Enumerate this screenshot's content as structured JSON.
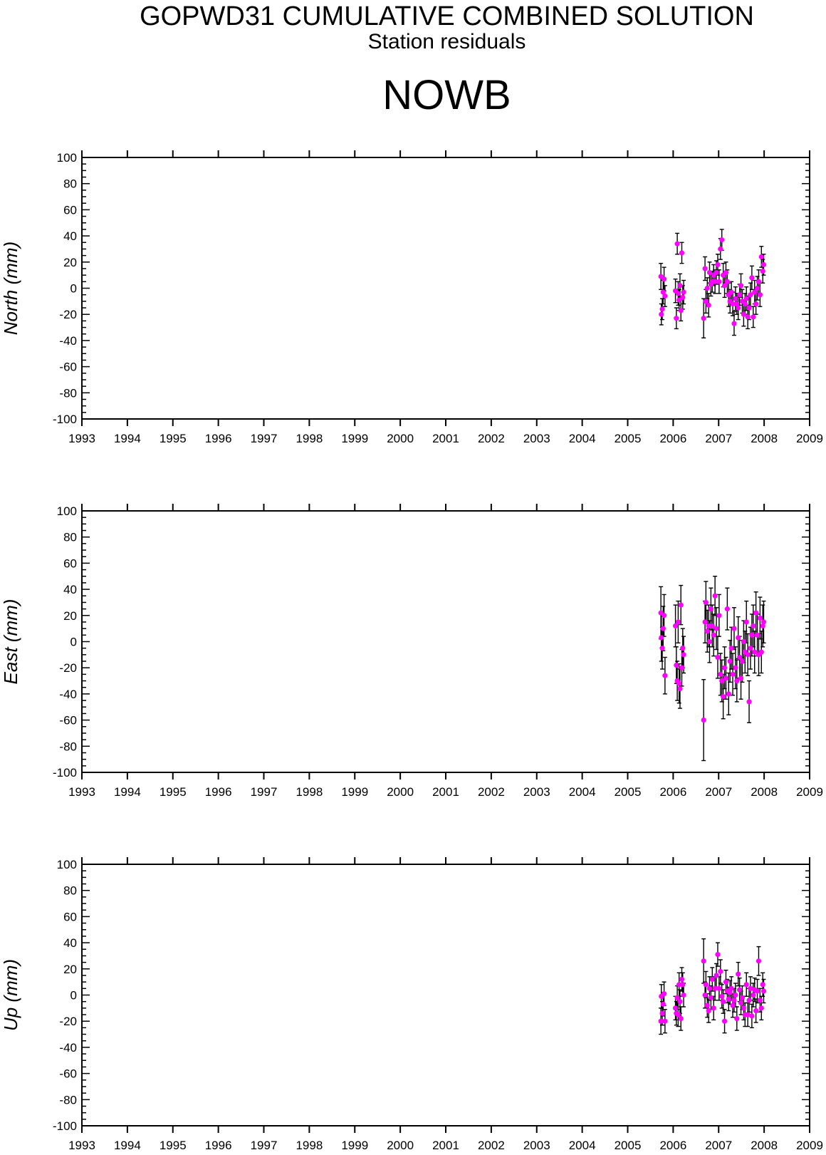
{
  "header": {
    "title": "GOPWD31 CUMULATIVE COMBINED SOLUTION",
    "subtitle": "Station residuals",
    "station": "NOWB"
  },
  "colors": {
    "axis": "#000000",
    "marker": "#ff00ff",
    "errorbar": "#000000"
  },
  "chart_data": [
    {
      "type": "scatter",
      "ylabel": "North (mm)",
      "xlim": [
        1993,
        2009
      ],
      "ylim": [
        -100,
        100
      ],
      "xticks": [
        "1993",
        "1994",
        "1995",
        "1996",
        "1997",
        "1998",
        "1999",
        "2000",
        "2001",
        "2002",
        "2003",
        "2004",
        "2005",
        "2006",
        "2007",
        "2008",
        "2009"
      ],
      "yticks": [
        "-100",
        "-80",
        "-60",
        "-40",
        "-20",
        "0",
        "20",
        "40",
        "60",
        "80",
        "100"
      ],
      "grid": false,
      "error_bars": true,
      "points": [
        [
          2005.73,
          9,
          10
        ],
        [
          2005.74,
          -20,
          8
        ],
        [
          2005.76,
          -16,
          8
        ],
        [
          2005.78,
          -3,
          9
        ],
        [
          2005.8,
          7,
          9
        ],
        [
          2005.82,
          -6,
          8
        ],
        [
          2006.05,
          -2,
          9
        ],
        [
          2006.07,
          -23,
          8
        ],
        [
          2006.09,
          34,
          8
        ],
        [
          2006.11,
          -4,
          9
        ],
        [
          2006.13,
          -9,
          8
        ],
        [
          2006.15,
          2,
          9
        ],
        [
          2006.17,
          -17,
          8
        ],
        [
          2006.19,
          27,
          8
        ],
        [
          2006.21,
          -7,
          9
        ],
        [
          2006.23,
          -3,
          9
        ],
        [
          2006.67,
          -23,
          15
        ],
        [
          2006.7,
          15,
          9
        ],
        [
          2006.72,
          -10,
          9
        ],
        [
          2006.75,
          0,
          8
        ],
        [
          2006.78,
          -13,
          9
        ],
        [
          2006.8,
          12,
          8
        ],
        [
          2006.83,
          3,
          9
        ],
        [
          2006.86,
          5,
          8
        ],
        [
          2006.89,
          10,
          8
        ],
        [
          2006.92,
          5,
          9
        ],
        [
          2006.95,
          12,
          9
        ],
        [
          2006.98,
          18,
          8
        ],
        [
          2007.01,
          5,
          9
        ],
        [
          2007.04,
          30,
          8
        ],
        [
          2007.07,
          37,
          8
        ],
        [
          2007.1,
          10,
          9
        ],
        [
          2007.13,
          2,
          9
        ],
        [
          2007.16,
          12,
          8
        ],
        [
          2007.19,
          5,
          9
        ],
        [
          2007.22,
          -5,
          9
        ],
        [
          2007.25,
          -10,
          9
        ],
        [
          2007.28,
          -3,
          8
        ],
        [
          2007.31,
          -12,
          9
        ],
        [
          2007.34,
          -27,
          9
        ],
        [
          2007.37,
          -8,
          9
        ],
        [
          2007.4,
          -12,
          8
        ],
        [
          2007.43,
          -15,
          9
        ],
        [
          2007.46,
          -5,
          8
        ],
        [
          2007.49,
          2,
          9
        ],
        [
          2007.52,
          -10,
          9
        ],
        [
          2007.55,
          -20,
          9
        ],
        [
          2007.58,
          -12,
          8
        ],
        [
          2007.61,
          -8,
          9
        ],
        [
          2007.64,
          -22,
          9
        ],
        [
          2007.67,
          -15,
          9
        ],
        [
          2007.7,
          -5,
          9
        ],
        [
          2007.73,
          8,
          9
        ],
        [
          2007.76,
          -22,
          8
        ],
        [
          2007.79,
          -3,
          9
        ],
        [
          2007.82,
          -12,
          8
        ],
        [
          2007.85,
          0,
          9
        ],
        [
          2007.88,
          5,
          9
        ],
        [
          2007.91,
          -5,
          9
        ],
        [
          2007.94,
          24,
          8
        ],
        [
          2007.97,
          13,
          9
        ],
        [
          2007.99,
          18,
          8
        ]
      ]
    },
    {
      "type": "scatter",
      "ylabel": "East (mm)",
      "xlim": [
        1993,
        2009
      ],
      "ylim": [
        -100,
        100
      ],
      "xticks": [
        "1993",
        "1994",
        "1995",
        "1996",
        "1997",
        "1998",
        "1999",
        "2000",
        "2001",
        "2002",
        "2003",
        "2004",
        "2005",
        "2006",
        "2007",
        "2008",
        "2009"
      ],
      "yticks": [
        "-100",
        "-80",
        "-60",
        "-40",
        "-20",
        "0",
        "20",
        "40",
        "60",
        "80",
        "100"
      ],
      "grid": false,
      "error_bars": true,
      "points": [
        [
          2005.73,
          22,
          20
        ],
        [
          2005.74,
          3,
          18
        ],
        [
          2005.76,
          -5,
          16
        ],
        [
          2005.78,
          10,
          17
        ],
        [
          2005.8,
          20,
          16
        ],
        [
          2005.82,
          -26,
          14
        ],
        [
          2006.05,
          12,
          16
        ],
        [
          2006.07,
          -18,
          14
        ],
        [
          2006.09,
          -30,
          15
        ],
        [
          2006.11,
          15,
          16
        ],
        [
          2006.13,
          -32,
          15
        ],
        [
          2006.15,
          -36,
          15
        ],
        [
          2006.17,
          28,
          15
        ],
        [
          2006.19,
          -20,
          14
        ],
        [
          2006.21,
          -5,
          15
        ],
        [
          2006.23,
          -10,
          14
        ],
        [
          2006.67,
          -60,
          31
        ],
        [
          2006.7,
          15,
          16
        ],
        [
          2006.72,
          30,
          16
        ],
        [
          2006.75,
          8,
          16
        ],
        [
          2006.78,
          12,
          16
        ],
        [
          2006.8,
          0,
          16
        ],
        [
          2006.83,
          25,
          16
        ],
        [
          2006.86,
          12,
          16
        ],
        [
          2006.89,
          5,
          16
        ],
        [
          2006.92,
          35,
          15
        ],
        [
          2006.95,
          10,
          16
        ],
        [
          2006.98,
          -12,
          16
        ],
        [
          2007.01,
          20,
          16
        ],
        [
          2007.04,
          -25,
          16
        ],
        [
          2007.07,
          -30,
          16
        ],
        [
          2007.1,
          -42,
          17
        ],
        [
          2007.13,
          -20,
          16
        ],
        [
          2007.16,
          -28,
          16
        ],
        [
          2007.19,
          25,
          16
        ],
        [
          2007.22,
          -40,
          16
        ],
        [
          2007.25,
          -15,
          16
        ],
        [
          2007.28,
          -5,
          16
        ],
        [
          2007.31,
          -25,
          16
        ],
        [
          2007.34,
          10,
          16
        ],
        [
          2007.37,
          -20,
          16
        ],
        [
          2007.4,
          -30,
          16
        ],
        [
          2007.43,
          3,
          16
        ],
        [
          2007.46,
          -12,
          16
        ],
        [
          2007.49,
          -28,
          16
        ],
        [
          2007.52,
          -15,
          16
        ],
        [
          2007.55,
          0,
          16
        ],
        [
          2007.58,
          -8,
          16
        ],
        [
          2007.61,
          15,
          16
        ],
        [
          2007.64,
          -10,
          16
        ],
        [
          2007.67,
          -46,
          16
        ],
        [
          2007.7,
          -5,
          16
        ],
        [
          2007.73,
          5,
          16
        ],
        [
          2007.76,
          12,
          16
        ],
        [
          2007.79,
          -8,
          16
        ],
        [
          2007.82,
          22,
          16
        ],
        [
          2007.85,
          5,
          16
        ],
        [
          2007.88,
          -10,
          16
        ],
        [
          2007.91,
          18,
          16
        ],
        [
          2007.94,
          -8,
          16
        ],
        [
          2007.97,
          12,
          16
        ],
        [
          2007.99,
          15,
          16
        ]
      ]
    },
    {
      "type": "scatter",
      "ylabel": "Up (mm)",
      "xlim": [
        1993,
        2009
      ],
      "ylim": [
        -100,
        100
      ],
      "xticks": [
        "1993",
        "1994",
        "1995",
        "1996",
        "1997",
        "1998",
        "1999",
        "2000",
        "2001",
        "2002",
        "2003",
        "2004",
        "2005",
        "2006",
        "2007",
        "2008",
        "2009"
      ],
      "yticks": [
        "-100",
        "-80",
        "-60",
        "-40",
        "-20",
        "0",
        "20",
        "40",
        "60",
        "80",
        "100"
      ],
      "grid": false,
      "error_bars": true,
      "points": [
        [
          2005.73,
          -20,
          10
        ],
        [
          2005.74,
          -1,
          9
        ],
        [
          2005.76,
          -14,
          9
        ],
        [
          2005.78,
          -7,
          9
        ],
        [
          2005.8,
          1,
          9
        ],
        [
          2005.82,
          -20,
          9
        ],
        [
          2006.05,
          -10,
          9
        ],
        [
          2006.07,
          -14,
          9
        ],
        [
          2006.09,
          -2,
          9
        ],
        [
          2006.11,
          -15,
          9
        ],
        [
          2006.13,
          8,
          9
        ],
        [
          2006.15,
          -5,
          9
        ],
        [
          2006.17,
          -18,
          9
        ],
        [
          2006.19,
          12,
          9
        ],
        [
          2006.21,
          8,
          9
        ],
        [
          2006.23,
          0,
          9
        ],
        [
          2006.67,
          26,
          17
        ],
        [
          2006.7,
          0,
          10
        ],
        [
          2006.72,
          8,
          10
        ],
        [
          2006.75,
          -8,
          9
        ],
        [
          2006.78,
          -12,
          9
        ],
        [
          2006.8,
          5,
          9
        ],
        [
          2006.83,
          -2,
          9
        ],
        [
          2006.86,
          12,
          9
        ],
        [
          2006.89,
          -10,
          9
        ],
        [
          2006.92,
          5,
          9
        ],
        [
          2006.95,
          15,
          9
        ],
        [
          2006.98,
          31,
          9
        ],
        [
          2007.01,
          5,
          9
        ],
        [
          2007.04,
          18,
          9
        ],
        [
          2007.07,
          -1,
          9
        ],
        [
          2007.1,
          -5,
          9
        ],
        [
          2007.13,
          -20,
          9
        ],
        [
          2007.16,
          10,
          9
        ],
        [
          2007.19,
          3,
          9
        ],
        [
          2007.22,
          -3,
          9
        ],
        [
          2007.25,
          2,
          9
        ],
        [
          2007.28,
          5,
          9
        ],
        [
          2007.31,
          -8,
          9
        ],
        [
          2007.34,
          -4,
          9
        ],
        [
          2007.37,
          0,
          9
        ],
        [
          2007.4,
          -18,
          9
        ],
        [
          2007.43,
          16,
          9
        ],
        [
          2007.46,
          4,
          9
        ],
        [
          2007.49,
          -6,
          9
        ],
        [
          2007.52,
          -2,
          9
        ],
        [
          2007.55,
          -10,
          9
        ],
        [
          2007.58,
          -15,
          9
        ],
        [
          2007.61,
          8,
          9
        ],
        [
          2007.64,
          -15,
          9
        ],
        [
          2007.67,
          -4,
          9
        ],
        [
          2007.7,
          5,
          9
        ],
        [
          2007.73,
          -16,
          9
        ],
        [
          2007.76,
          0,
          9
        ],
        [
          2007.79,
          4,
          9
        ],
        [
          2007.82,
          -12,
          9
        ],
        [
          2007.85,
          3,
          9
        ],
        [
          2007.88,
          26,
          11
        ],
        [
          2007.91,
          -4,
          9
        ],
        [
          2007.94,
          -10,
          9
        ],
        [
          2007.97,
          8,
          9
        ],
        [
          2007.99,
          3,
          9
        ]
      ]
    }
  ]
}
